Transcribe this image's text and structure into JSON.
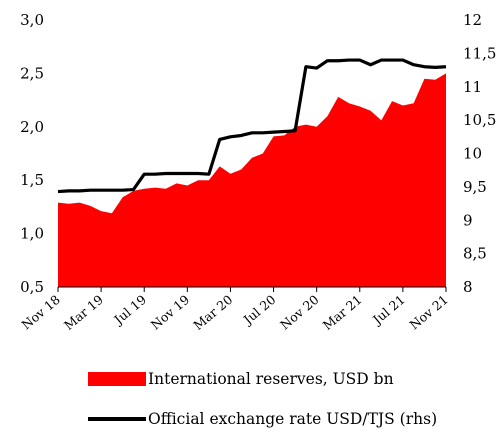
{
  "chart_data": {
    "type": "area",
    "x_tick_labels": [
      "Nov 18",
      "Mar 19",
      "Jul 19",
      "Nov 19",
      "Mar 20",
      "Jul 20",
      "Nov 20",
      "Mar 21",
      "Jul 21",
      "Nov 21"
    ],
    "x": [
      "2018-11",
      "2018-12",
      "2019-01",
      "2019-02",
      "2019-03",
      "2019-04",
      "2019-05",
      "2019-06",
      "2019-07",
      "2019-08",
      "2019-09",
      "2019-10",
      "2019-11",
      "2019-12",
      "2020-01",
      "2020-02",
      "2020-03",
      "2020-04",
      "2020-05",
      "2020-06",
      "2020-07",
      "2020-08",
      "2020-09",
      "2020-10",
      "2020-11",
      "2020-12",
      "2021-01",
      "2021-02",
      "2021-03",
      "2021-04",
      "2021-05",
      "2021-06",
      "2021-07",
      "2021-08",
      "2021-09",
      "2021-10",
      "2021-11"
    ],
    "y_left": {
      "min": 0.5,
      "max": 3.0,
      "ticks": [
        "0,5",
        "1,0",
        "1,5",
        "2,0",
        "2,5",
        "3,0"
      ],
      "tick_values": [
        0.5,
        1.0,
        1.5,
        2.0,
        2.5,
        3.0
      ]
    },
    "y_right": {
      "min": 8,
      "max": 12,
      "ticks": [
        "8",
        "8,5",
        "9",
        "9,5",
        "10",
        "10,5",
        "11",
        "11,5",
        "12"
      ],
      "tick_values": [
        8,
        8.5,
        9,
        9.5,
        10,
        10.5,
        11,
        11.5,
        12
      ]
    },
    "series": [
      {
        "name": "International reserves, USD bn",
        "kind": "area",
        "axis": "left",
        "color": "#ff0000",
        "values": [
          1.29,
          1.28,
          1.29,
          1.26,
          1.21,
          1.19,
          1.34,
          1.4,
          1.42,
          1.43,
          1.42,
          1.47,
          1.45,
          1.5,
          1.5,
          1.63,
          1.56,
          1.6,
          1.71,
          1.75,
          1.91,
          1.92,
          2.0,
          2.02,
          2.0,
          2.1,
          2.28,
          2.22,
          2.19,
          2.15,
          2.06,
          2.24,
          2.2,
          2.22,
          2.45,
          2.44,
          2.5
        ]
      },
      {
        "name": "Official exchange rate USD/TJS (rhs)",
        "kind": "line",
        "axis": "right",
        "color": "#000000",
        "values": [
          9.43,
          9.44,
          9.44,
          9.45,
          9.45,
          9.45,
          9.45,
          9.46,
          9.69,
          9.69,
          9.7,
          9.7,
          9.7,
          9.7,
          9.69,
          10.21,
          10.25,
          10.27,
          10.31,
          10.31,
          10.32,
          10.33,
          10.34,
          11.3,
          11.28,
          11.39,
          11.39,
          11.4,
          11.4,
          11.33,
          11.4,
          11.4,
          11.4,
          11.33,
          11.3,
          11.29,
          11.3
        ]
      }
    ]
  },
  "legend": {
    "reserves_label": "International reserves, USD bn",
    "fx_label": "Official exchange rate USD/TJS (rhs)"
  }
}
